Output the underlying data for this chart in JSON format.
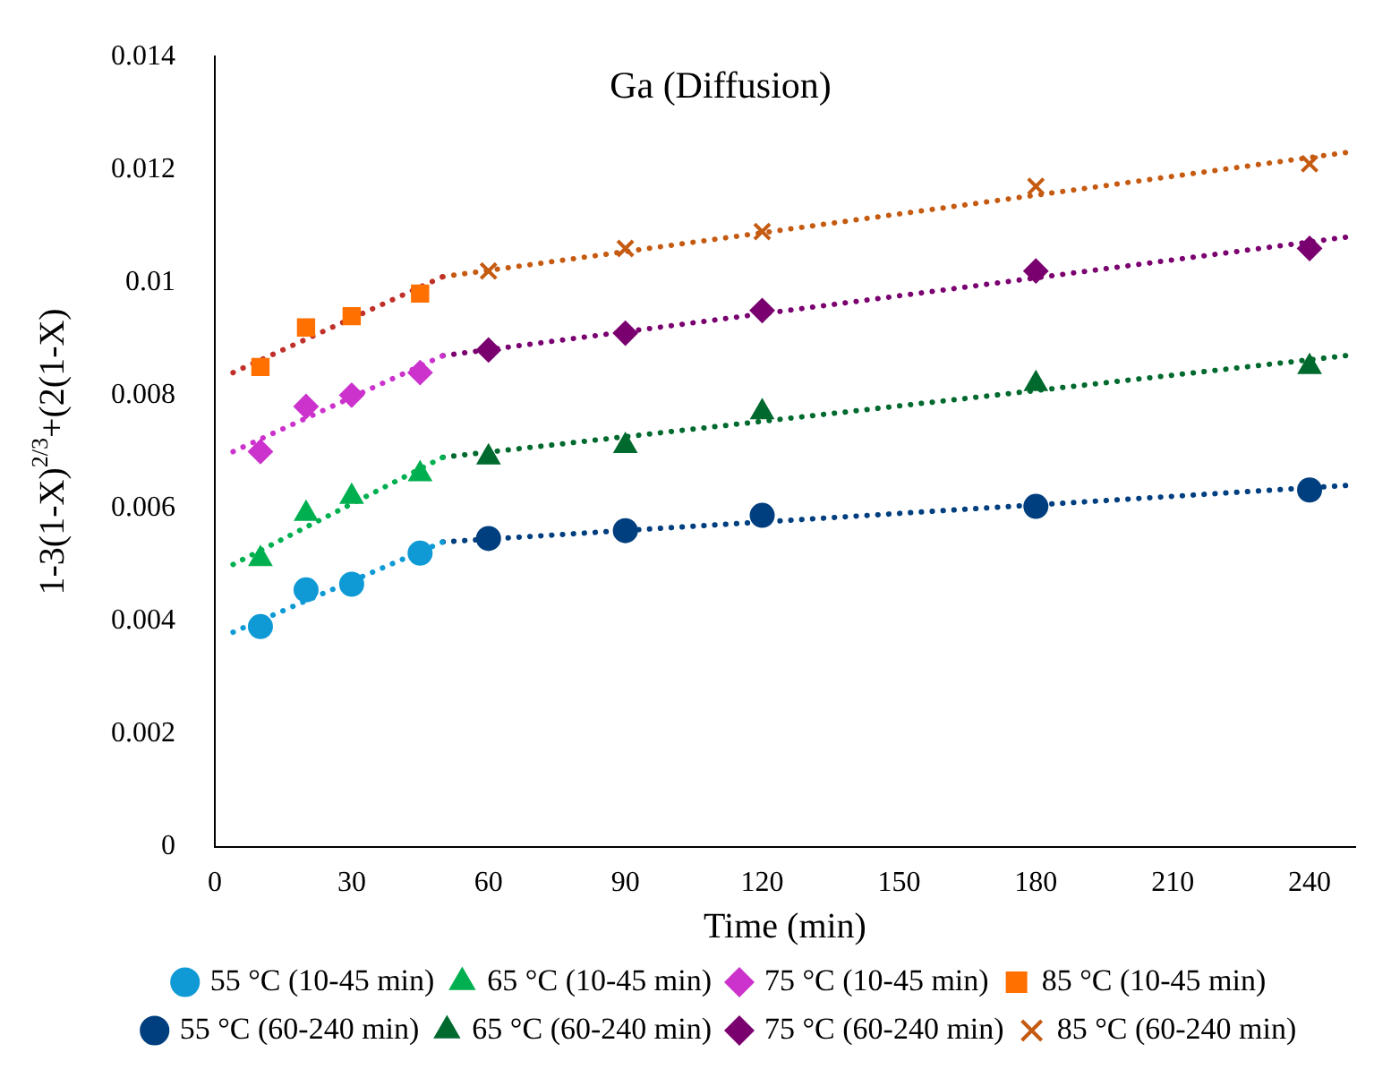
{
  "chart_data": {
    "type": "scatter",
    "title": "Ga (Diffusion)",
    "xlabel": "Time (min)",
    "ylabel": "1-3(1-X)$^{2/3}$+(2(1-X)",
    "xlim": [
      0,
      250
    ],
    "xticks": [
      0,
      30,
      60,
      90,
      120,
      150,
      180,
      210,
      240
    ],
    "ylim": [
      0,
      0.014
    ],
    "yticks": [
      0,
      0.002,
      0.004,
      0.006,
      0.008,
      0.01,
      0.012,
      0.014
    ],
    "grid": false,
    "legend": "bottom",
    "series": [
      {
        "name": "55 °C (10-45 min)",
        "color": "#0f9ad6",
        "marker": "circle",
        "x": [
          10,
          20,
          30,
          45
        ],
        "values": [
          0.0039,
          0.00455,
          0.00465,
          0.0052
        ]
      },
      {
        "name": "65 °C (10-45 min)",
        "color": "#00b050",
        "marker": "triangle",
        "x": [
          10,
          20,
          30,
          45
        ],
        "values": [
          0.0051,
          0.0059,
          0.0062,
          0.0066
        ]
      },
      {
        "name": "75 °C (10-45 min)",
        "color": "#cc33cc",
        "marker": "diamond",
        "x": [
          10,
          20,
          30,
          45
        ],
        "values": [
          0.007,
          0.0078,
          0.008,
          0.0084
        ]
      },
      {
        "name": "85 °C (10-45 min)",
        "color": "#ff7000",
        "marker": "square",
        "x": [
          10,
          20,
          30,
          45
        ],
        "values": [
          0.0085,
          0.0092,
          0.0094,
          0.0098
        ]
      },
      {
        "name": "55 °C (60-240 min)",
        "color": "#003f7f",
        "marker": "circle",
        "x": [
          60,
          90,
          120,
          180,
          240
        ],
        "values": [
          0.00546,
          0.0056,
          0.00587,
          0.00603,
          0.00632
        ]
      },
      {
        "name": "65 °C (60-240 min)",
        "color": "#006a2e",
        "marker": "triangle",
        "x": [
          60,
          90,
          120,
          180,
          240
        ],
        "values": [
          0.0069,
          0.0071,
          0.0077,
          0.0082,
          0.0085
        ]
      },
      {
        "name": "75 °C (60-240 min)",
        "color": "#7a0070",
        "marker": "diamond",
        "x": [
          60,
          90,
          120,
          180,
          240
        ],
        "values": [
          0.0088,
          0.0091,
          0.0095,
          0.0102,
          0.0106
        ]
      },
      {
        "name": "85 °C (60-240 min)",
        "color": "#c55a11",
        "marker": "cross",
        "x": [
          60,
          90,
          120,
          180,
          240
        ],
        "values": [
          0.0102,
          0.0106,
          0.0109,
          0.0117,
          0.0121
        ]
      },
      {
        "type": "line",
        "color": "#0f9ad6",
        "line_style": "dotted",
        "marker": "none",
        "x": [
          4,
          50
        ],
        "values": [
          0.0038,
          0.0054
        ]
      },
      {
        "type": "line",
        "color": "#00b050",
        "line_style": "dotted",
        "marker": "none",
        "x": [
          4,
          50
        ],
        "values": [
          0.005,
          0.0069
        ]
      },
      {
        "type": "line",
        "color": "#cc33cc",
        "line_style": "dotted",
        "marker": "none",
        "x": [
          4,
          50
        ],
        "values": [
          0.007,
          0.0087
        ]
      },
      {
        "type": "line",
        "color": "#c0302a",
        "line_style": "dotted",
        "marker": "none",
        "x": [
          4,
          50
        ],
        "values": [
          0.0084,
          0.0101
        ]
      },
      {
        "type": "line",
        "color": "#003f7f",
        "line_style": "dotted",
        "marker": "none",
        "x": [
          50,
          248
        ],
        "values": [
          0.0054,
          0.0064
        ]
      },
      {
        "type": "line",
        "color": "#006a2e",
        "line_style": "dotted",
        "marker": "none",
        "x": [
          50,
          248
        ],
        "values": [
          0.0069,
          0.0087
        ]
      },
      {
        "type": "line",
        "color": "#7a0070",
        "line_style": "dotted",
        "marker": "none",
        "x": [
          50,
          248
        ],
        "values": [
          0.0087,
          0.0108
        ]
      },
      {
        "type": "line",
        "color": "#c55a11",
        "line_style": "dotted",
        "marker": "none",
        "x": [
          50,
          248
        ],
        "values": [
          0.0101,
          0.0123
        ]
      }
    ]
  }
}
